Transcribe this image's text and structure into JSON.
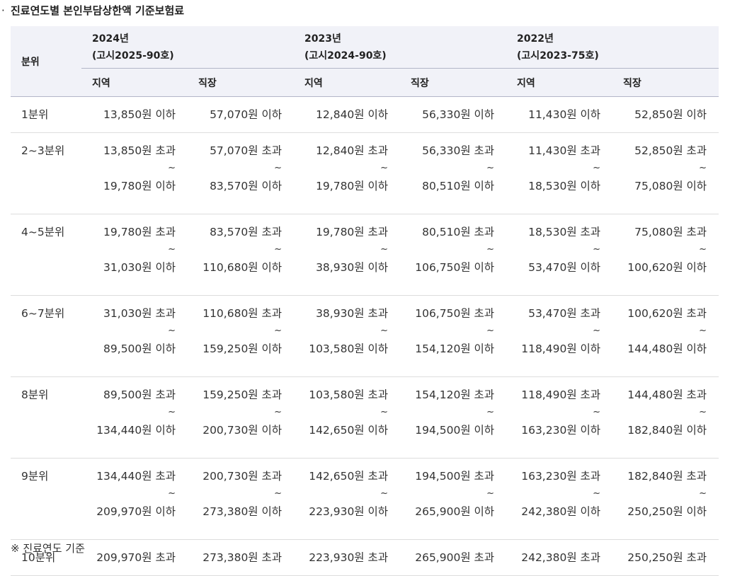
{
  "heading": {
    "bullet": "·",
    "title": "진료연도별 본인부담상한액 기준보험료"
  },
  "table": {
    "quintile_header": "분위",
    "years": [
      {
        "year": "2024년",
        "notice": "(고시2025-90호)"
      },
      {
        "year": "2023년",
        "notice": "(고시2024-90호)"
      },
      {
        "year": "2022년",
        "notice": "(고시2023-75호)"
      }
    ],
    "sub_headers": [
      "지역",
      "직장",
      "지역",
      "직장",
      "지역",
      "직장"
    ],
    "tilde": "~",
    "rows": [
      {
        "quintile": "1분위",
        "type": "single",
        "values": [
          "13,850원 이하",
          "57,070원 이하",
          "12,840원 이하",
          "56,330원 이하",
          "11,430원 이하",
          "52,850원 이하"
        ]
      },
      {
        "quintile": "2~3분위",
        "type": "range",
        "from": [
          "13,850원 초과",
          "57,070원 초과",
          "12,840원 초과",
          "56,330원 초과",
          "11,430원 초과",
          "52,850원 초과"
        ],
        "to": [
          "19,780원 이하",
          "83,570원 이하",
          "19,780원 이하",
          "80,510원 이하",
          "18,530원 이하",
          "75,080원 이하"
        ]
      },
      {
        "quintile": "4~5분위",
        "type": "range",
        "from": [
          "19,780원 초과",
          "83,570원 초과",
          "19,780원 초과",
          "80,510원 초과",
          "18,530원 초과",
          "75,080원 초과"
        ],
        "to": [
          "31,030원 이하",
          "110,680원 이하",
          "38,930원 이하",
          "106,750원 이하",
          "53,470원 이하",
          "100,620원 이하"
        ]
      },
      {
        "quintile": "6~7분위",
        "type": "range",
        "from": [
          "31,030원 초과",
          "110,680원 초과",
          "38,930원 초과",
          "106,750원 초과",
          "53,470원 초과",
          "100,620원 초과"
        ],
        "to": [
          "89,500원 이하",
          "159,250원 이하",
          "103,580원 이하",
          "154,120원 이하",
          "118,490원 이하",
          "144,480원 이하"
        ]
      },
      {
        "quintile": "8분위",
        "type": "range",
        "from": [
          "89,500원 초과",
          "159,250원 초과",
          "103,580원 초과",
          "154,120원 초과",
          "118,490원 초과",
          "144,480원 초과"
        ],
        "to": [
          "134,440원 이하",
          "200,730원 이하",
          "142,650원 이하",
          "194,500원 이하",
          "163,230원 이하",
          "182,840원 이하"
        ]
      },
      {
        "quintile": "9분위",
        "type": "range",
        "from": [
          "134,440원 초과",
          "200,730원 초과",
          "142,650원 초과",
          "194,500원 초과",
          "163,230원 초과",
          "182,840원 초과"
        ],
        "to": [
          "209,970원 이하",
          "273,380원 이하",
          "223,930원 이하",
          "265,900원 이하",
          "242,380원 이하",
          "250,250원 이하"
        ]
      },
      {
        "quintile": "10분위",
        "type": "single",
        "values": [
          "209,970원 초과",
          "273,380원 초과",
          "223,930원 초과",
          "265,900원 초과",
          "242,380원 초과",
          "250,250원 초과"
        ]
      }
    ]
  },
  "note": "※ 진료연도 기준"
}
